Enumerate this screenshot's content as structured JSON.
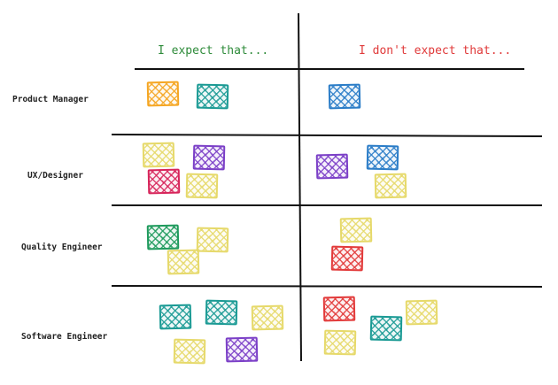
{
  "headers": {
    "expect": "I expect that...",
    "dont_expect": "I don't expect that..."
  },
  "roles": {
    "product_manager": "Product Manager",
    "ux_designer": "UX/Designer",
    "quality_engineer": "Quality Engineer",
    "software_engineer": "Software Engineer"
  },
  "colors": {
    "expect_header": "#2e8b3a",
    "dont_expect_header": "#e03a3a",
    "orange": "#f5a623",
    "teal": "#1a9a94",
    "blue": "#2a7cc7",
    "purple": "#7b3fc7",
    "magenta": "#d7245a",
    "yellow": "#e6d96a",
    "green": "#1e9a5c",
    "red": "#e23a3a",
    "line": "#111111"
  },
  "stickies": {
    "pm_expect": [
      "orange",
      "teal"
    ],
    "pm_dont_expect": [
      "blue"
    ],
    "ux_expect": [
      "yellow",
      "purple",
      "magenta",
      "yellow"
    ],
    "ux_dont_expect": [
      "purple",
      "blue",
      "yellow"
    ],
    "qe_expect": [
      "green",
      "yellow",
      "yellow"
    ],
    "qe_dont_expect": [
      "yellow",
      "red"
    ],
    "se_expect": [
      "teal",
      "teal",
      "yellow",
      "yellow",
      "purple"
    ],
    "se_dont_expect": [
      "red",
      "teal",
      "yellow",
      "yellow"
    ]
  }
}
